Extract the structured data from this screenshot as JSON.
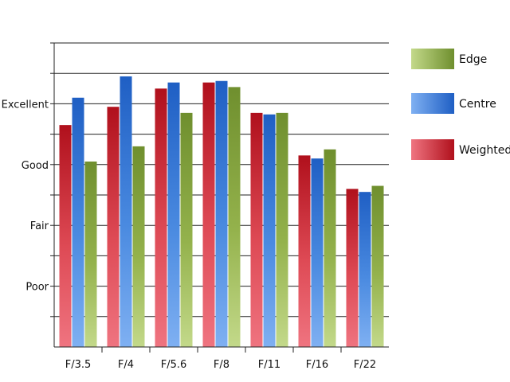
{
  "chart_data": {
    "type": "bar",
    "categories": [
      "F/3.5",
      "F/4",
      "F/5.6",
      "F/8",
      "F/11",
      "F/16",
      "F/22"
    ],
    "series": [
      {
        "name": "Weighted",
        "values": [
          7.3,
          7.9,
          8.5,
          8.7,
          7.7,
          6.3,
          5.2
        ],
        "color": "#c8192a"
      },
      {
        "name": "Centre",
        "values": [
          8.2,
          8.9,
          8.7,
          8.75,
          7.65,
          6.2,
          5.1
        ],
        "color": "#2a69c8"
      },
      {
        "name": "Edge",
        "values": [
          6.1,
          6.6,
          7.7,
          8.55,
          7.7,
          6.5,
          5.3
        ],
        "color": "#7e9a3a"
      }
    ],
    "y_tick_labels": [
      {
        "value": 8,
        "label": "Excellent"
      },
      {
        "value": 6,
        "label": "Good"
      },
      {
        "value": 4,
        "label": "Fair"
      },
      {
        "value": 2,
        "label": "Poor"
      }
    ],
    "ylim": [
      0,
      10
    ],
    "gridlines": [
      1,
      2,
      3,
      4,
      5,
      6,
      7,
      8,
      9,
      10
    ],
    "legend": {
      "placement": "right",
      "order": [
        "Edge",
        "Centre",
        "Weighted"
      ]
    },
    "title": "",
    "xlabel": "",
    "ylabel": ""
  }
}
